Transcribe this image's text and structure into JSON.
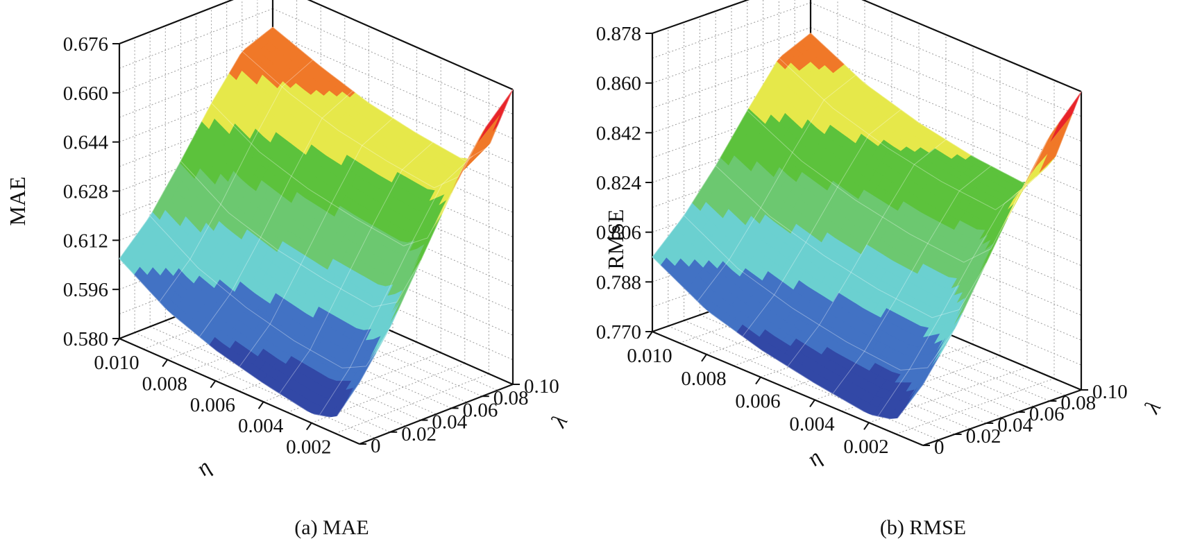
{
  "colors": {
    "levels": [
      "#3248a6",
      "#4272c4",
      "#6bd0d0",
      "#6cc870",
      "#5cc23c",
      "#e6e84a",
      "#f07828",
      "#e8242a"
    ]
  },
  "chart_data": [
    {
      "type": "surface",
      "caption": "(a) MAE",
      "zlabel": "MAE",
      "xlabel": "η",
      "ylabel": "λ",
      "x_ticks": [
        "0.010",
        "0.008",
        "0.006",
        "0.004",
        "0.002"
      ],
      "y_ticks": [
        "0",
        "0.02",
        "0.04",
        "0.06",
        "0.08",
        "0.10"
      ],
      "z_ticks": [
        "0.580",
        "0.596",
        "0.612",
        "0.628",
        "0.644",
        "0.660",
        "0.676"
      ],
      "xlim": [
        0,
        0.01
      ],
      "ylim": [
        0,
        0.1
      ],
      "zlim": [
        0.58,
        0.676
      ],
      "surface": {
        "eta": [
          0.01,
          0.008,
          0.006,
          0.004,
          0.002,
          0.001,
          0.0
        ],
        "lambda": [
          0.0,
          0.02,
          0.04,
          0.06,
          0.08,
          0.1
        ],
        "values": [
          [
            0.606,
            0.616,
            0.63,
            0.645,
            0.658,
            0.662
          ],
          [
            0.596,
            0.606,
            0.62,
            0.636,
            0.651,
            0.656
          ],
          [
            0.59,
            0.6,
            0.615,
            0.631,
            0.646,
            0.651
          ],
          [
            0.586,
            0.596,
            0.612,
            0.628,
            0.643,
            0.648
          ],
          [
            0.583,
            0.594,
            0.61,
            0.626,
            0.641,
            0.646
          ],
          [
            0.585,
            0.598,
            0.615,
            0.632,
            0.648,
            0.654
          ],
          [
            0.6,
            0.614,
            0.632,
            0.65,
            0.666,
            0.676
          ]
        ]
      },
      "contour_lines": false
    },
    {
      "type": "surface",
      "caption": "(b) RMSE",
      "zlabel": "RMSE",
      "xlabel": "η",
      "ylabel": "λ",
      "x_ticks": [
        "0.010",
        "0.008",
        "0.006",
        "0.004",
        "0.002"
      ],
      "y_ticks": [
        "0",
        "0.02",
        "0.04",
        "0.06",
        "0.08",
        "0.10"
      ],
      "z_ticks": [
        "0.770",
        "0.788",
        "0.806",
        "0.824",
        "0.842",
        "0.860",
        "0.878"
      ],
      "xlim": [
        0,
        0.01
      ],
      "ylim": [
        0,
        0.1
      ],
      "zlim": [
        0.77,
        0.878
      ],
      "surface": {
        "eta": [
          0.01,
          0.008,
          0.006,
          0.004,
          0.002,
          0.001,
          0.0
        ],
        "lambda": [
          0.0,
          0.02,
          0.04,
          0.06,
          0.08,
          0.1
        ],
        "values": [
          [
            0.797,
            0.808,
            0.822,
            0.838,
            0.853,
            0.858
          ],
          [
            0.786,
            0.797,
            0.812,
            0.828,
            0.843,
            0.848
          ],
          [
            0.78,
            0.791,
            0.806,
            0.822,
            0.837,
            0.842
          ],
          [
            0.776,
            0.787,
            0.802,
            0.818,
            0.833,
            0.838
          ],
          [
            0.773,
            0.785,
            0.8,
            0.816,
            0.831,
            0.836
          ],
          [
            0.775,
            0.79,
            0.807,
            0.825,
            0.842,
            0.849
          ],
          [
            0.792,
            0.808,
            0.828,
            0.848,
            0.866,
            0.878
          ]
        ]
      },
      "contour_lines": true
    }
  ]
}
